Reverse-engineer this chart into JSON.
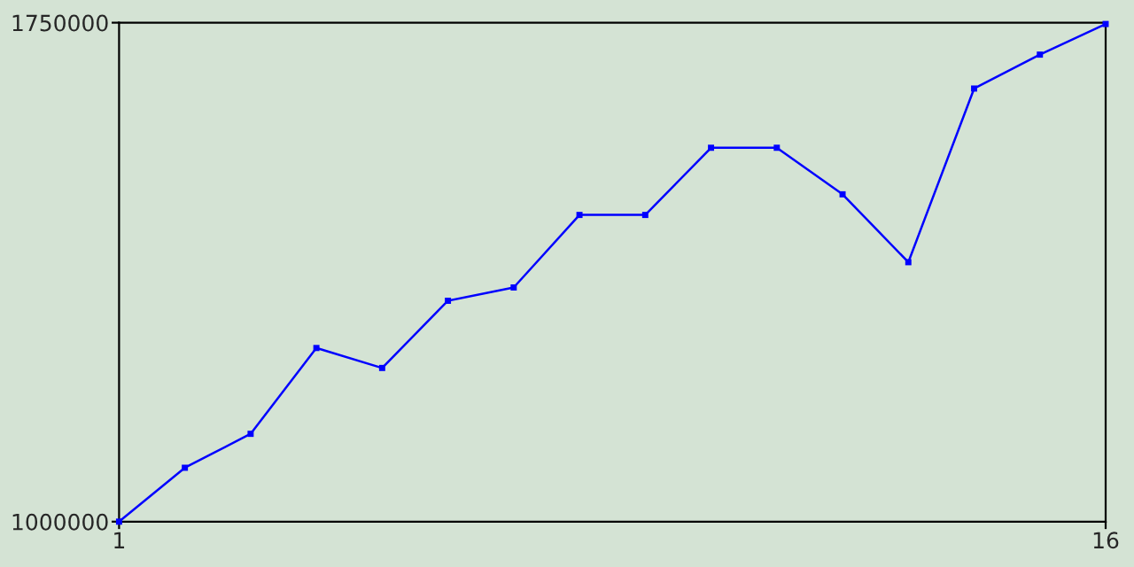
{
  "chart_data": {
    "type": "line",
    "x": [
      1,
      2,
      3,
      4,
      5,
      6,
      7,
      8,
      9,
      10,
      11,
      12,
      13,
      14,
      15,
      16
    ],
    "series": [
      {
        "color": "#0000ff",
        "values": [
          1000000,
          1081000,
          1132000,
          1261000,
          1231000,
          1332000,
          1352000,
          1461000,
          1461000,
          1562000,
          1562000,
          1492000,
          1390000,
          1651000,
          1702000,
          1748000
        ]
      }
    ],
    "xlim": [
      1,
      16
    ],
    "xticks": [
      1,
      16
    ],
    "ylim": [
      1000000,
      1750000
    ],
    "yticks": [
      1000000,
      1750000
    ],
    "marker": "square",
    "line_style": "solid"
  }
}
